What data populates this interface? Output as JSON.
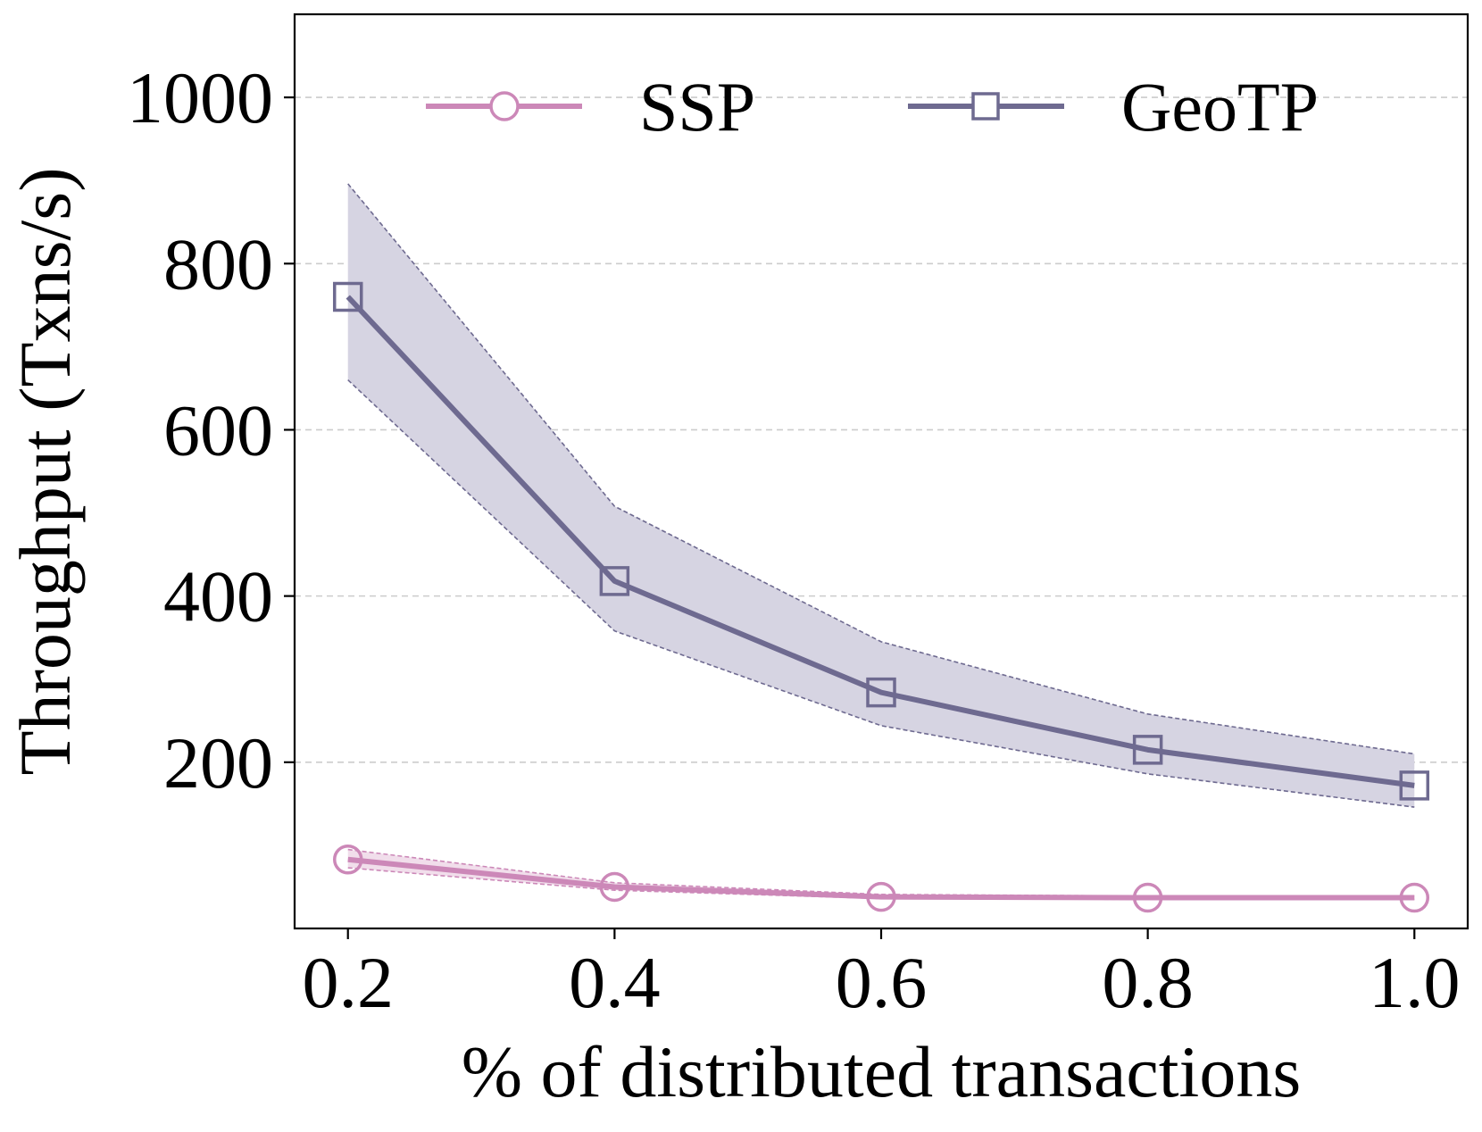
{
  "chart_data": {
    "type": "line",
    "title": "",
    "xlabel": "% of distributed transactions",
    "ylabel": "Throughput (Txns/s)",
    "x": [
      0.2,
      0.4,
      0.6,
      0.8,
      1.0
    ],
    "x_tick_labels": [
      "0.2",
      "0.4",
      "0.6",
      "0.8",
      "1.0"
    ],
    "xlim": [
      0.16,
      1.04
    ],
    "ylim": [
      0,
      1100
    ],
    "y_ticks": [
      200,
      400,
      600,
      800,
      1000
    ],
    "y_tick_labels": [
      "200",
      "400",
      "600",
      "800",
      "1000"
    ],
    "grid": "horizontal dashed",
    "legend_position": "top",
    "series": [
      {
        "name": "SSP",
        "color": "#cc88b8",
        "marker": "circle",
        "values": [
          83,
          50,
          38,
          37,
          37
        ],
        "band_lower": [
          73,
          46,
          36,
          35,
          35
        ],
        "band_upper": [
          95,
          55,
          41,
          39,
          39
        ]
      },
      {
        "name": "GeoTP",
        "color": "#6e6a90",
        "band_color": "#d6d4e2",
        "marker": "square",
        "values": [
          760,
          418,
          284,
          215,
          172
        ],
        "band_lower": [
          660,
          358,
          244,
          186,
          146
        ],
        "band_upper": [
          896,
          508,
          345,
          258,
          210
        ]
      }
    ]
  }
}
